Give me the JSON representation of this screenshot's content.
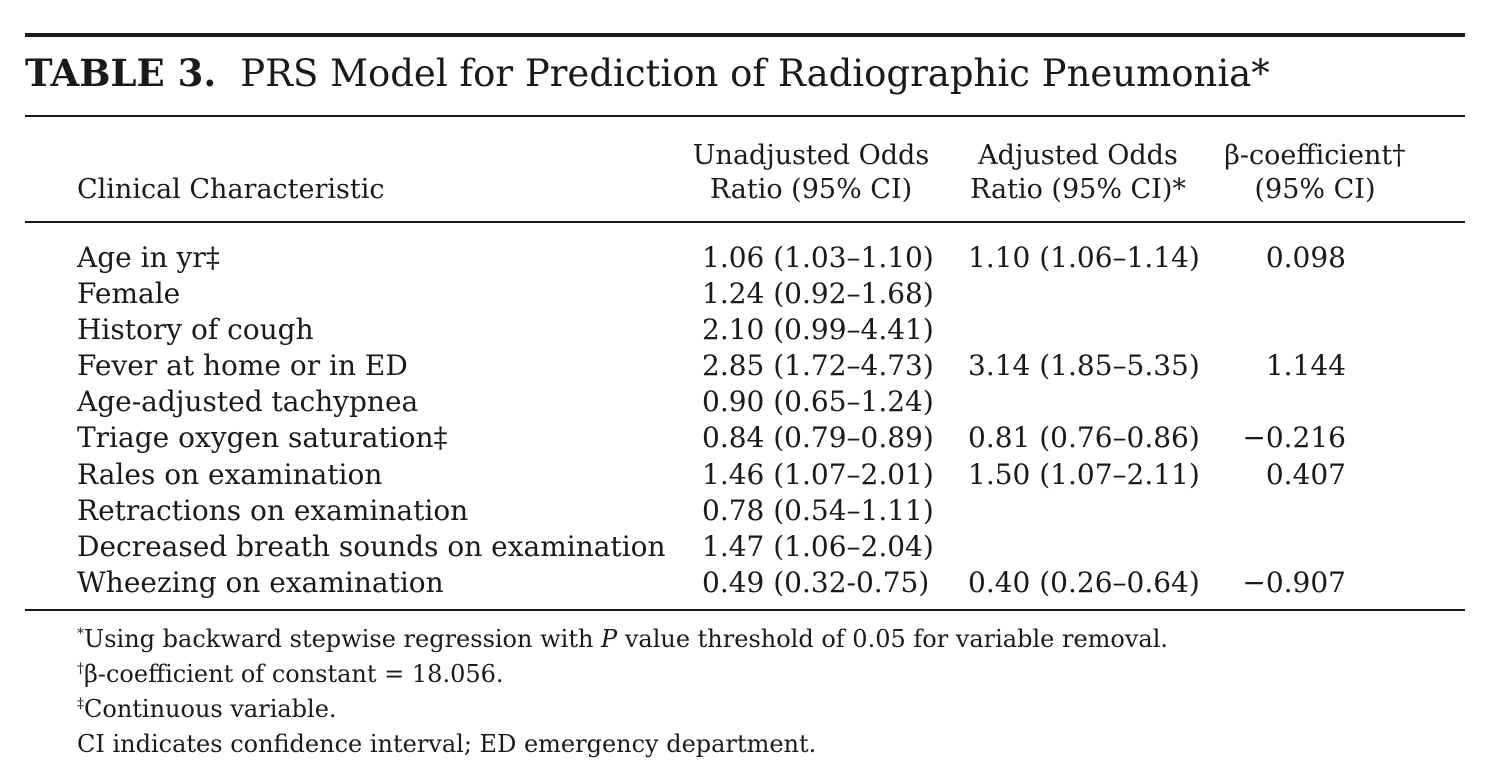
{
  "table": {
    "label": "TABLE 3.",
    "title": "PRS Model for Prediction of Radiographic Pneumonia*",
    "headers": {
      "characteristic": "Clinical Characteristic",
      "unadjusted_line1": "Unadjusted Odds",
      "unadjusted_line2": "Ratio (95% CI)",
      "adjusted_line1": "Adjusted Odds",
      "adjusted_line2": "Ratio (95% CI)*",
      "beta_line1": "β-coefficient†",
      "beta_line2": "(95% CI)"
    },
    "rows": [
      {
        "characteristic": "Age in yr‡",
        "unadjusted": "1.06 (1.03–1.10)",
        "adjusted": "1.10 (1.06–1.14)",
        "beta": "0.098"
      },
      {
        "characteristic": "Female",
        "unadjusted": "1.24 (0.92–1.68)",
        "adjusted": "",
        "beta": ""
      },
      {
        "characteristic": "History of cough",
        "unadjusted": "2.10 (0.99–4.41)",
        "adjusted": "",
        "beta": ""
      },
      {
        "characteristic": "Fever at home or in ED",
        "unadjusted": "2.85 (1.72–4.73)",
        "adjusted": "3.14 (1.85–5.35)",
        "beta": "1.144"
      },
      {
        "characteristic": "Age-adjusted tachypnea",
        "unadjusted": "0.90 (0.65–1.24)",
        "adjusted": "",
        "beta": ""
      },
      {
        "characteristic": "Triage oxygen saturation‡",
        "unadjusted": "0.84 (0.79–0.89)",
        "adjusted": "0.81 (0.76–0.86)",
        "beta": "−0.216"
      },
      {
        "characteristic": "Rales on examination",
        "unadjusted": "1.46 (1.07–2.01)",
        "adjusted": "1.50 (1.07–2.11)",
        "beta": "0.407"
      },
      {
        "characteristic": "Retractions on examination",
        "unadjusted": "0.78 (0.54–1.11)",
        "adjusted": "",
        "beta": ""
      },
      {
        "characteristic": "Decreased breath sounds on examination",
        "unadjusted": "1.47 (1.06–2.04)",
        "adjusted": "",
        "beta": ""
      },
      {
        "characteristic": "Wheezing on examination",
        "unadjusted": "0.49 (0.32-0.75)",
        "adjusted": "0.40 (0.26–0.64)",
        "beta": "−0.907"
      }
    ]
  },
  "footnotes": [
    {
      "mark": "*",
      "pre": "Using backward stepwise regression with ",
      "italic": "P",
      "post": " value threshold of 0.05 for variable removal."
    },
    {
      "mark": "†",
      "pre": "β-coefficient of constant = 18.056.",
      "italic": "",
      "post": ""
    },
    {
      "mark": "‡",
      "pre": "Continuous variable.",
      "italic": "",
      "post": ""
    },
    {
      "mark": "",
      "pre": "CI indicates confidence interval; ED emergency department.",
      "italic": "",
      "post": ""
    }
  ]
}
